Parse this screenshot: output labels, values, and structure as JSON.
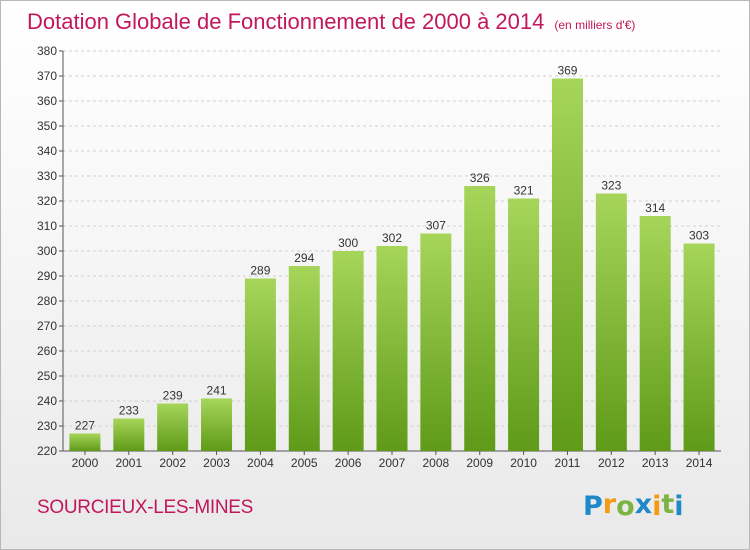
{
  "header": {
    "title": "Dotation Globale de Fonctionnement de 2000 à 2014",
    "unit": "(en milliers d'€)"
  },
  "footer": {
    "commune": "SOURCIEUX-LES-MINES",
    "logo_letters": [
      {
        "char": "P",
        "color": "#1e88c8"
      },
      {
        "char": "r",
        "color": "#f39c12"
      },
      {
        "char": "o",
        "color": "#7cb342"
      },
      {
        "char": "x",
        "color": "#1e88c8"
      },
      {
        "char": "i",
        "color": "#f39c12"
      },
      {
        "char": "t",
        "color": "#7cb342"
      },
      {
        "char": "i",
        "color": "#1e88c8"
      }
    ]
  },
  "colors": {
    "bar_light": "#a6d55a",
    "bar_dark": "#5f9a18",
    "title": "#c2185b",
    "grid": "#d0d0d0",
    "axis": "#555555"
  },
  "chart_data": {
    "type": "bar",
    "title": "Dotation Globale de Fonctionnement de 2000 à 2014",
    "subtitle": "(en milliers d'€)",
    "xlabel": "",
    "ylabel": "",
    "categories": [
      "2000",
      "2001",
      "2002",
      "2003",
      "2004",
      "2005",
      "2006",
      "2007",
      "2008",
      "2009",
      "2010",
      "2011",
      "2012",
      "2013",
      "2014"
    ],
    "values": [
      227,
      233,
      239,
      241,
      289,
      294,
      300,
      302,
      307,
      326,
      321,
      369,
      323,
      314,
      303
    ],
    "ylim": [
      220,
      380
    ],
    "yticks": [
      220,
      230,
      240,
      250,
      260,
      270,
      280,
      290,
      300,
      310,
      320,
      330,
      340,
      350,
      360,
      370,
      380
    ],
    "grid": true,
    "data_labels": true
  }
}
